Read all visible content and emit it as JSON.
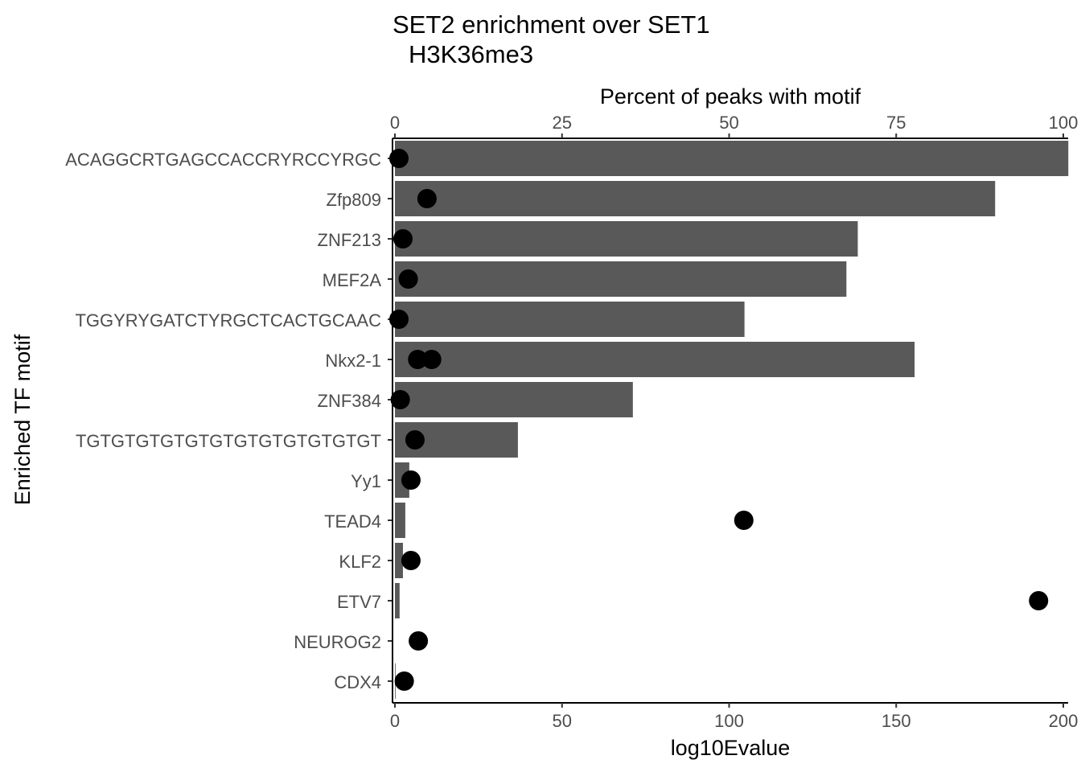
{
  "chart_data": {
    "type": "bar",
    "orientation": "horizontal",
    "title": "SET2 enrichment over SET1",
    "subtitle": "H3K36me3",
    "xlabel": "log10Evalue",
    "x2label": "Percent of peaks with motif",
    "ylabel": "Enriched TF motif",
    "xlim": [
      0,
      200
    ],
    "x2lim": [
      0,
      100
    ],
    "xticks": [
      "0",
      "50",
      "100",
      "150",
      "200"
    ],
    "x2ticks": [
      "0",
      "25",
      "50",
      "75",
      "100"
    ],
    "grid": false,
    "categories": [
      "ACAGGCRTGAGCCACCRYRCCYRGC",
      "Zfp809",
      "ZNF213",
      "MEF2A",
      "TGGYRYGATCTYRGCTCACTGCAAC",
      "Nkx2-1",
      "ZNF384",
      "TGTGTGTGTGTGTGTGTGTGTGTGT",
      "Yy1",
      "TEAD4",
      "KLF2",
      "ETV7",
      "NEUROG2",
      "CDX4"
    ],
    "bar_values_log10Evalue": [
      201.5,
      179.6,
      138.5,
      135.1,
      104.6,
      155.5,
      71.2,
      36.8,
      4.3,
      3.1,
      2.4,
      1.4,
      0,
      0.2
    ],
    "point_values_percent": [
      [
        0.6
      ],
      [
        4.8
      ],
      [
        1.2
      ],
      [
        2.0
      ],
      [
        0.6
      ],
      [
        3.4,
        5.5
      ],
      [
        0.8
      ],
      [
        3.0
      ],
      [
        2.4
      ],
      [
        52.2
      ],
      [
        2.4
      ],
      [
        96.3
      ],
      [
        3.5
      ],
      [
        1.4
      ]
    ],
    "colors": {
      "bar": "#595959",
      "point": "#000000"
    }
  }
}
